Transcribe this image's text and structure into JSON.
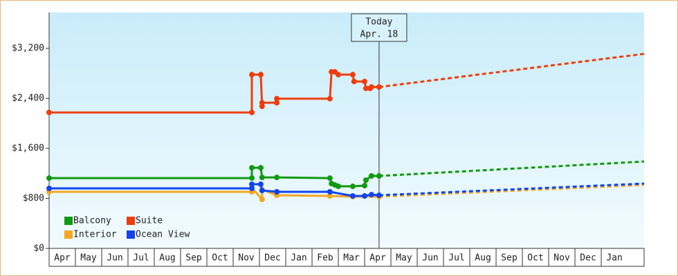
{
  "chart_data": {
    "type": "line",
    "categories": [
      "Apr",
      "May",
      "Jun",
      "Jul",
      "Aug",
      "Sep",
      "Oct",
      "Nov",
      "Dec",
      "Jan",
      "Feb",
      "Mar",
      "Apr",
      "May",
      "Jun",
      "Jul",
      "Aug",
      "Sep",
      "Oct",
      "Nov",
      "Dec",
      "Jan"
    ],
    "xlim": [
      0,
      22.63
    ],
    "ylim": [
      0,
      3775
    ],
    "yticks": [
      {
        "value": 0,
        "label": "$0"
      },
      {
        "value": 800,
        "label": "$800"
      },
      {
        "value": 1600,
        "label": "$1,600"
      },
      {
        "value": 2400,
        "label": "$2,400"
      },
      {
        "value": 3200,
        "label": "$3,200"
      }
    ],
    "annotation": {
      "x": 12.55,
      "lines": [
        "Today",
        "Apr. 18"
      ]
    },
    "legend": "lower left",
    "series": [
      {
        "name": "Balcony",
        "color": "#119911",
        "x": [
          0,
          7.71,
          7.71,
          8.05,
          8.1,
          8.66,
          10.68,
          10.74,
          10.87,
          11.0,
          11.55,
          12.0,
          12.05,
          12.26,
          12.55
        ],
        "values": [
          1125,
          1125,
          1290,
          1290,
          1135,
          1135,
          1125,
          1037,
          1015,
          993,
          993,
          1004,
          1092,
          1159,
          1159
        ],
        "forecast_x": [
          12.55,
          22.63
        ],
        "forecast_values": [
          1159,
          1390
        ]
      },
      {
        "name": "Suite",
        "color": "#f03c0c",
        "x": [
          0,
          7.71,
          7.71,
          8.05,
          8.1,
          8.1,
          8.66,
          8.66,
          10.68,
          10.74,
          10.87,
          11.0,
          11.55,
          11.6,
          12.0,
          12.05,
          12.21,
          12.26,
          12.55
        ],
        "values": [
          2175,
          2175,
          2780,
          2780,
          2273,
          2330,
          2330,
          2395,
          2395,
          2825,
          2825,
          2780,
          2780,
          2670,
          2670,
          2560,
          2560,
          2582,
          2582
        ],
        "forecast_x": [
          12.55,
          22.63
        ],
        "forecast_values": [
          2582,
          3112
        ]
      },
      {
        "name": "Interior",
        "color": "#f5a623",
        "x": [
          0,
          7.71,
          7.71,
          8.1,
          8.1,
          8.66,
          10.68,
          11.55,
          12.55
        ],
        "values": [
          905,
          905,
          971,
          783,
          940,
          850,
          839,
          828,
          828
        ],
        "forecast_x": [
          12.55,
          22.63
        ],
        "forecast_values": [
          828,
          1015
        ]
      },
      {
        "name": "Ocean View",
        "color": "#1144ee",
        "x": [
          0,
          7.71,
          7.71,
          8.05,
          8.1,
          8.66,
          10.68,
          11.55,
          12.0,
          12.26,
          12.55
        ],
        "values": [
          960,
          960,
          1026,
          1026,
          927,
          905,
          905,
          839,
          839,
          860,
          850
        ],
        "forecast_x": [
          12.55,
          22.63
        ],
        "forecast_values": [
          850,
          1037
        ]
      }
    ]
  }
}
